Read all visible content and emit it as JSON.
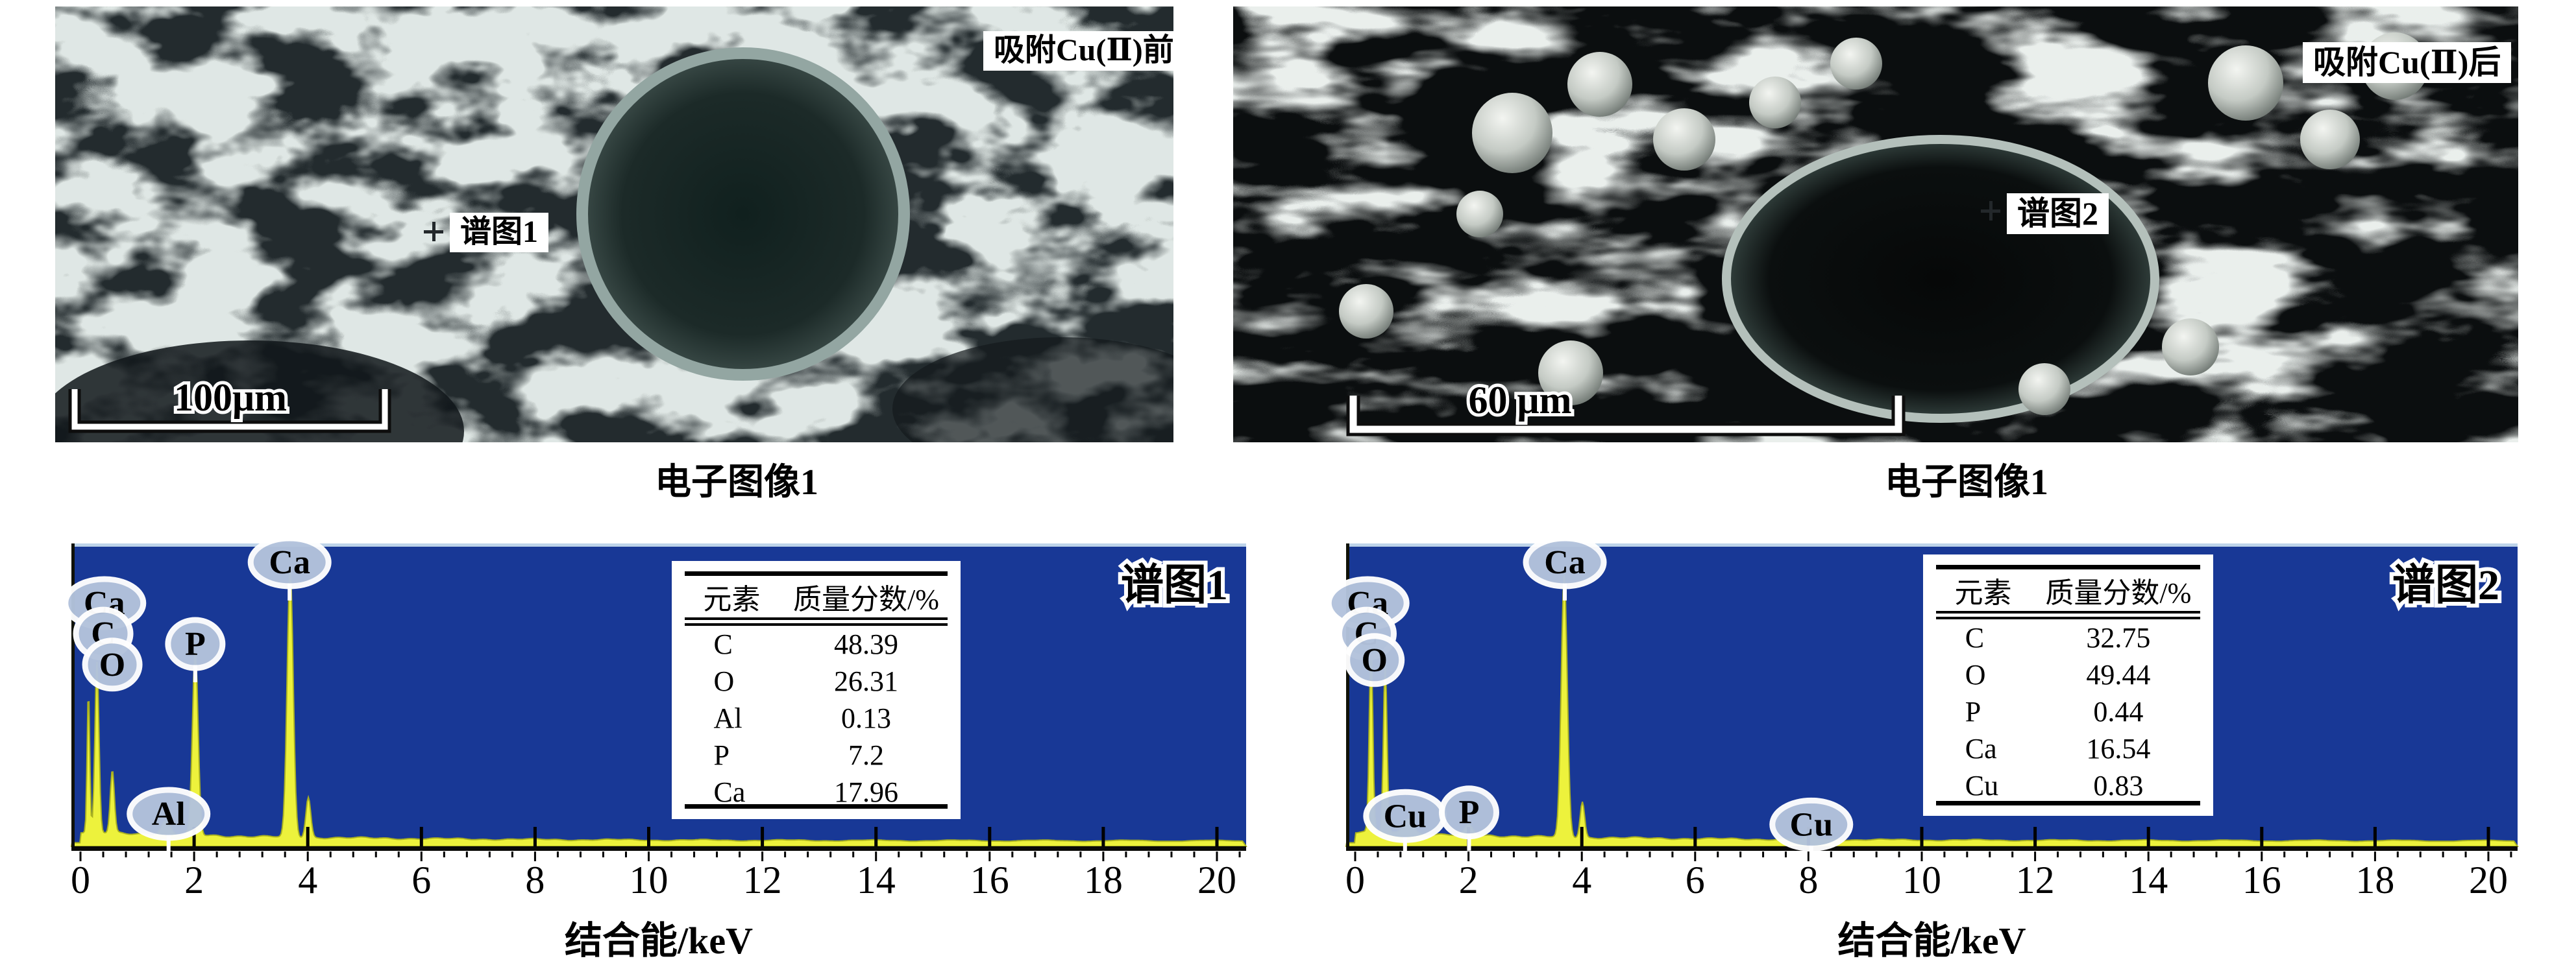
{
  "figure": {
    "panels": [
      {
        "corner_label": "吸附Cu(Ⅱ)前",
        "spot_label": "谱图1",
        "scalebar_text": "100μm",
        "caption": "电子图像1"
      },
      {
        "corner_label": "吸附Cu(Ⅱ)后",
        "spot_label": "谱图2",
        "scalebar_text": "60 μm",
        "caption": "电子图像1"
      }
    ]
  },
  "chart_data": [
    {
      "type": "area",
      "title": "谱图1",
      "xlabel": "结合能/keV",
      "xlim": [
        0,
        20
      ],
      "x_ticks": [
        0,
        2,
        4,
        6,
        8,
        10,
        12,
        14,
        16,
        18,
        20
      ],
      "grid": false,
      "y_axis": "hidden (counts, unlabeled)",
      "colors": {
        "background": "#183896",
        "top_border": "#bdd3e9",
        "series": "#edf23c",
        "series_edge": "#a9b120",
        "bubble": "#b3c3dc"
      },
      "peaks": [
        {
          "element": "",
          "kev": 0.14,
          "height": 0.48,
          "width": 0.032
        },
        {
          "element": "C",
          "kev": 0.29,
          "height": 0.57,
          "width": 0.05
        },
        {
          "element": "O",
          "kev": 0.56,
          "height": 0.21,
          "width": 0.05
        },
        {
          "element": "Al",
          "kev": 1.5,
          "height": 0.045,
          "width": 0.11
        },
        {
          "element": "P",
          "kev": 2.02,
          "height": 0.62,
          "width": 0.07
        },
        {
          "element": "Ca",
          "kev": 3.69,
          "height": 0.9,
          "width": 0.075
        },
        {
          "element": "Ca",
          "kev": 4.01,
          "height": 0.135,
          "width": 0.06
        }
      ],
      "labels": [
        {
          "text": "Ca",
          "kev": 0.42,
          "yfrac": 0.197,
          "stem": false
        },
        {
          "text": "C",
          "kev": 0.4,
          "yfrac": 0.298,
          "stem": false
        },
        {
          "text": "O",
          "kev": 0.56,
          "yfrac": 0.4,
          "stem": false
        },
        {
          "text": "Al",
          "kev": 1.55,
          "yfrac": 0.893,
          "stem": true
        },
        {
          "text": "P",
          "kev": 2.02,
          "yfrac": 0.332,
          "stem": true
        },
        {
          "text": "Ca",
          "kev": 3.68,
          "yfrac": 0.062,
          "stem": true
        }
      ],
      "table": {
        "headers": [
          "元素",
          "质量分数/%"
        ],
        "rows": [
          [
            "C",
            "48.39"
          ],
          [
            "O",
            "26.31"
          ],
          [
            "Al",
            "0.13"
          ],
          [
            "P",
            "7.2"
          ],
          [
            "Ca",
            "17.96"
          ]
        ]
      }
    },
    {
      "type": "area",
      "title": "谱图2",
      "xlabel": "结合能/keV",
      "xlim": [
        0,
        20
      ],
      "x_ticks": [
        0,
        2,
        4,
        6,
        8,
        10,
        12,
        14,
        16,
        18,
        20
      ],
      "grid": false,
      "y_axis": "hidden (counts, unlabeled)",
      "colors": {
        "background": "#183896",
        "top_border": "#bdd3e9",
        "series": "#edf23c",
        "series_edge": "#a9b120",
        "bubble": "#b3c3dc"
      },
      "peaks": [
        {
          "element": "C",
          "kev": 0.28,
          "height": 0.62,
          "width": 0.045
        },
        {
          "element": "O",
          "kev": 0.53,
          "height": 0.57,
          "width": 0.045
        },
        {
          "element": "Cu",
          "kev": 0.93,
          "height": 0.05,
          "width": 0.12
        },
        {
          "element": "P",
          "kev": 2.01,
          "height": 0.032,
          "width": 0.1
        },
        {
          "element": "Ca",
          "kev": 3.69,
          "height": 0.88,
          "width": 0.075
        },
        {
          "element": "Ca",
          "kev": 4.01,
          "height": 0.12,
          "width": 0.055
        },
        {
          "element": "Cu",
          "kev": 8.05,
          "height": 0.028,
          "width": 0.09
        }
      ],
      "labels": [
        {
          "text": "Ca",
          "kev": 0.22,
          "yfrac": 0.197,
          "stem": false
        },
        {
          "text": "C",
          "kev": 0.2,
          "yfrac": 0.298,
          "stem": false
        },
        {
          "text": "O",
          "kev": 0.34,
          "yfrac": 0.385,
          "stem": false
        },
        {
          "text": "Cu",
          "kev": 0.88,
          "yfrac": 0.9,
          "stem": true
        },
        {
          "text": "P",
          "kev": 2.01,
          "yfrac": 0.888,
          "stem": true
        },
        {
          "text": "Ca",
          "kev": 3.7,
          "yfrac": 0.062,
          "stem": true
        },
        {
          "text": "Cu",
          "kev": 8.05,
          "yfrac": 0.928,
          "stem": true
        }
      ],
      "table": {
        "headers": [
          "元素",
          "质量分数/%"
        ],
        "rows": [
          [
            "C",
            "32.75"
          ],
          [
            "O",
            "49.44"
          ],
          [
            "P",
            "0.44"
          ],
          [
            "Ca",
            "16.54"
          ],
          [
            "Cu",
            "0.83"
          ]
        ]
      }
    }
  ]
}
